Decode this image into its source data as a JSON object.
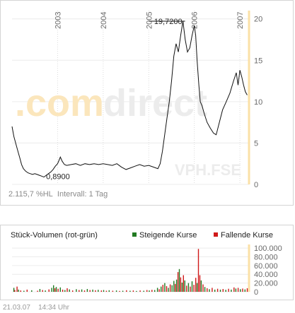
{
  "chart_data": [
    {
      "type": "line",
      "x_axis_labels": [
        "2003",
        "2004",
        "2005",
        "2006",
        "2007"
      ],
      "yticks": [
        0,
        5,
        10,
        15,
        20
      ],
      "ylim": [
        0,
        21
      ],
      "grid": true,
      "watermark": {
        "left": ".com",
        "right": "direct"
      },
      "ticker": "VPH.FSE",
      "annotations": [
        {
          "label": "0,8900",
          "x": 2002.7,
          "y": 0.89
        },
        {
          "label": "19,7200",
          "x": 2005.75,
          "y": 19.72
        }
      ],
      "series": [
        {
          "points": [
            [
              2002.0,
              7.0
            ],
            [
              2002.04,
              5.8
            ],
            [
              2002.07,
              5.2
            ],
            [
              2002.1,
              4.6
            ],
            [
              2002.14,
              3.8
            ],
            [
              2002.17,
              3.2
            ],
            [
              2002.21,
              2.4
            ],
            [
              2002.25,
              1.9
            ],
            [
              2002.3,
              1.6
            ],
            [
              2002.35,
              1.4
            ],
            [
              2002.4,
              1.3
            ],
            [
              2002.45,
              1.2
            ],
            [
              2002.5,
              1.3
            ],
            [
              2002.55,
              1.2
            ],
            [
              2002.6,
              1.1
            ],
            [
              2002.65,
              1.0
            ],
            [
              2002.7,
              0.89
            ],
            [
              2002.75,
              1.1
            ],
            [
              2002.8,
              1.3
            ],
            [
              2002.85,
              1.5
            ],
            [
              2002.9,
              1.8
            ],
            [
              2002.95,
              2.2
            ],
            [
              2003.0,
              2.5
            ],
            [
              2003.03,
              2.9
            ],
            [
              2003.06,
              3.3
            ],
            [
              2003.1,
              2.8
            ],
            [
              2003.15,
              2.4
            ],
            [
              2003.2,
              2.3
            ],
            [
              2003.3,
              2.4
            ],
            [
              2003.4,
              2.5
            ],
            [
              2003.5,
              2.3
            ],
            [
              2003.6,
              2.5
            ],
            [
              2003.7,
              2.4
            ],
            [
              2003.8,
              2.5
            ],
            [
              2003.9,
              2.4
            ],
            [
              2004.0,
              2.5
            ],
            [
              2004.1,
              2.4
            ],
            [
              2004.2,
              2.3
            ],
            [
              2004.3,
              2.5
            ],
            [
              2004.4,
              2.1
            ],
            [
              2004.5,
              1.8
            ],
            [
              2004.6,
              2.0
            ],
            [
              2004.7,
              2.2
            ],
            [
              2004.8,
              2.4
            ],
            [
              2004.9,
              2.2
            ],
            [
              2005.0,
              2.3
            ],
            [
              2005.1,
              2.1
            ],
            [
              2005.2,
              1.9
            ],
            [
              2005.25,
              2.5
            ],
            [
              2005.3,
              4.0
            ],
            [
              2005.35,
              6.0
            ],
            [
              2005.4,
              8.0
            ],
            [
              2005.45,
              10.0
            ],
            [
              2005.5,
              12.5
            ],
            [
              2005.55,
              15.5
            ],
            [
              2005.6,
              17.0
            ],
            [
              2005.65,
              16.0
            ],
            [
              2005.7,
              18.0
            ],
            [
              2005.75,
              19.72
            ],
            [
              2005.8,
              17.5
            ],
            [
              2005.85,
              16.0
            ],
            [
              2005.9,
              16.5
            ],
            [
              2005.95,
              18.0
            ],
            [
              2006.0,
              19.2
            ],
            [
              2006.03,
              18.0
            ],
            [
              2006.06,
              15.0
            ],
            [
              2006.1,
              12.0
            ],
            [
              2006.13,
              10.0
            ],
            [
              2006.17,
              9.5
            ],
            [
              2006.22,
              8.5
            ],
            [
              2006.28,
              7.5
            ],
            [
              2006.35,
              6.8
            ],
            [
              2006.42,
              6.2
            ],
            [
              2006.48,
              6.0
            ],
            [
              2006.55,
              7.5
            ],
            [
              2006.62,
              9.0
            ],
            [
              2006.7,
              10.0
            ],
            [
              2006.78,
              11.0
            ],
            [
              2006.86,
              12.5
            ],
            [
              2006.92,
              13.5
            ],
            [
              2006.96,
              12.0
            ],
            [
              2007.0,
              13.8
            ],
            [
              2007.04,
              13.0
            ],
            [
              2007.08,
              12.0
            ],
            [
              2007.12,
              11.2
            ],
            [
              2007.16,
              10.8
            ]
          ]
        }
      ]
    },
    {
      "type": "bar",
      "title": "Stück-Volumen (rot-grün)",
      "legend": [
        "Steigende Kurse",
        "Fallende Kurse"
      ],
      "series_colors": [
        "#217a21",
        "#d01a1a"
      ],
      "yticks": [
        0,
        20000,
        40000,
        60000,
        80000,
        100000
      ],
      "ytick_labels": [
        "0",
        "20.000",
        "40.000",
        "60.000",
        "80.000",
        "100.000"
      ],
      "ylim": [
        0,
        105000
      ],
      "volumes": [
        [
          2002.03,
          9000,
          1
        ],
        [
          2002.05,
          4000,
          0
        ],
        [
          2002.1,
          12000,
          0
        ],
        [
          2002.13,
          5000,
          1
        ],
        [
          2002.18,
          3000,
          0
        ],
        [
          2002.25,
          2500,
          1
        ],
        [
          2002.32,
          5000,
          0
        ],
        [
          2002.42,
          3500,
          1
        ],
        [
          2002.55,
          2500,
          0
        ],
        [
          2002.6,
          6500,
          1
        ],
        [
          2002.66,
          4000,
          0
        ],
        [
          2002.72,
          3000,
          1
        ],
        [
          2002.8,
          5500,
          0
        ],
        [
          2002.86,
          9000,
          1
        ],
        [
          2002.9,
          15000,
          1
        ],
        [
          2002.93,
          8000,
          0
        ],
        [
          2002.96,
          11000,
          1
        ],
        [
          2003.0,
          7000,
          0
        ],
        [
          2003.05,
          10000,
          1
        ],
        [
          2003.1,
          5000,
          0
        ],
        [
          2003.15,
          4000,
          1
        ],
        [
          2003.2,
          8000,
          0
        ],
        [
          2003.25,
          5500,
          1
        ],
        [
          2003.32,
          3000,
          0
        ],
        [
          2003.4,
          6000,
          1
        ],
        [
          2003.46,
          4000,
          0
        ],
        [
          2003.52,
          5500,
          1
        ],
        [
          2003.58,
          3000,
          0
        ],
        [
          2003.64,
          6500,
          1
        ],
        [
          2003.7,
          4000,
          0
        ],
        [
          2003.76,
          5000,
          1
        ],
        [
          2003.82,
          3500,
          0
        ],
        [
          2003.88,
          4500,
          1
        ],
        [
          2003.95,
          3000,
          0
        ],
        [
          2004.0,
          4000,
          1
        ],
        [
          2004.06,
          2500,
          0
        ],
        [
          2004.12,
          3500,
          1
        ],
        [
          2004.2,
          2500,
          0
        ],
        [
          2004.28,
          3000,
          1
        ],
        [
          2004.35,
          2000,
          0
        ],
        [
          2004.42,
          2500,
          1
        ],
        [
          2004.5,
          3500,
          0
        ],
        [
          2004.58,
          2500,
          1
        ],
        [
          2004.65,
          3000,
          0
        ],
        [
          2004.72,
          2000,
          1
        ],
        [
          2004.8,
          3000,
          0
        ],
        [
          2004.88,
          2500,
          1
        ],
        [
          2004.95,
          4000,
          0
        ],
        [
          2005.0,
          3000,
          1
        ],
        [
          2005.06,
          4500,
          0
        ],
        [
          2005.12,
          4000,
          1
        ],
        [
          2005.18,
          9000,
          1
        ],
        [
          2005.22,
          6000,
          0
        ],
        [
          2005.26,
          12000,
          1
        ],
        [
          2005.3,
          16000,
          0
        ],
        [
          2005.34,
          20000,
          1
        ],
        [
          2005.38,
          13000,
          0
        ],
        [
          2005.42,
          9000,
          1
        ],
        [
          2005.46,
          17000,
          0
        ],
        [
          2005.5,
          15000,
          1
        ],
        [
          2005.54,
          25000,
          1
        ],
        [
          2005.57,
          18000,
          0
        ],
        [
          2005.6,
          28000,
          1
        ],
        [
          2005.63,
          45000,
          0
        ],
        [
          2005.66,
          52000,
          1
        ],
        [
          2005.69,
          33000,
          0
        ],
        [
          2005.72,
          21000,
          1
        ],
        [
          2005.75,
          38000,
          0
        ],
        [
          2005.78,
          26000,
          1
        ],
        [
          2005.82,
          14000,
          0
        ],
        [
          2005.86,
          20000,
          1
        ],
        [
          2005.9,
          12000,
          0
        ],
        [
          2005.94,
          24000,
          1
        ],
        [
          2005.98,
          16000,
          0
        ],
        [
          2006.02,
          32000,
          0
        ],
        [
          2006.05,
          20000,
          1
        ],
        [
          2006.08,
          98000,
          0
        ],
        [
          2006.11,
          38000,
          0
        ],
        [
          2006.14,
          26000,
          1
        ],
        [
          2006.18,
          17000,
          0
        ],
        [
          2006.22,
          11000,
          1
        ],
        [
          2006.27,
          8000,
          0
        ],
        [
          2006.32,
          6000,
          1
        ],
        [
          2006.38,
          9000,
          0
        ],
        [
          2006.44,
          5000,
          1
        ],
        [
          2006.5,
          7000,
          0
        ],
        [
          2006.56,
          5000,
          1
        ],
        [
          2006.62,
          6500,
          0
        ],
        [
          2006.68,
          4500,
          1
        ],
        [
          2006.74,
          7000,
          0
        ],
        [
          2006.8,
          5000,
          1
        ],
        [
          2006.86,
          10000,
          0
        ],
        [
          2006.9,
          7500,
          1
        ],
        [
          2006.95,
          9000,
          0
        ],
        [
          2007.0,
          6000,
          1
        ],
        [
          2007.05,
          7500,
          0
        ],
        [
          2007.1,
          5500,
          1
        ],
        [
          2007.15,
          8000,
          0
        ]
      ]
    }
  ],
  "info": {
    "change": "2.115,7 %HL",
    "interval_label": "Intervall:",
    "interval_value": "1 Tag"
  },
  "footer": {
    "date": "21.03.07",
    "time": "14:34 Uhr"
  }
}
